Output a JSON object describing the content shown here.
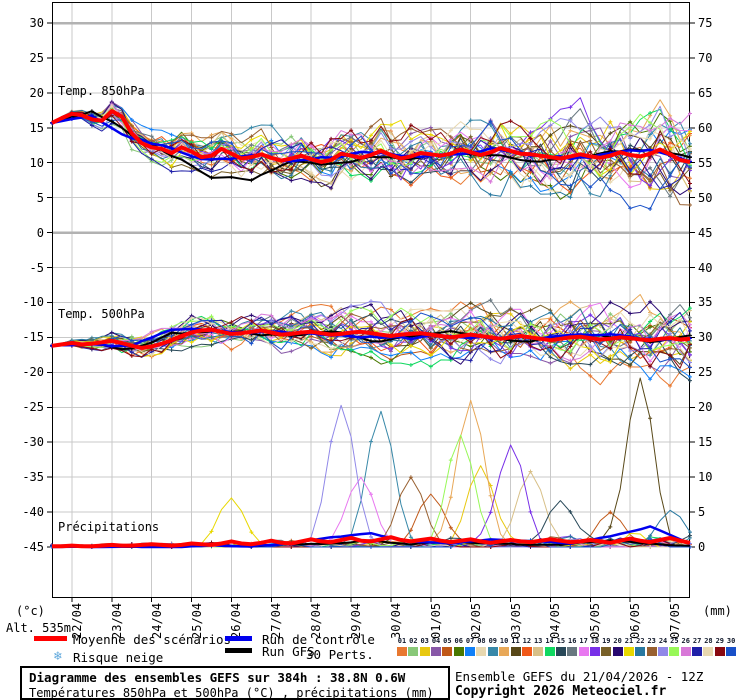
{
  "labels": {
    "altitude": "Alt. 535m",
    "unit_left": "(°c)",
    "unit_right": "(mm)",
    "risque_neige": "Risque neige",
    "snowflake": "❄",
    "perts_count": "30 Perts."
  },
  "legend": {
    "mean": "Moyenne des scénarios",
    "control": "Run de contrôle",
    "gfs": "Run GFS"
  },
  "footer": {
    "title": "Diagramme des ensembles GEFS sur 384h : 38.8N 0.6W",
    "subtitle": "Températures 850hPa et 500hPa (°C) , précipitations (mm)",
    "run_info": "Ensemble GEFS du 21/04/2026 - 12Z",
    "copyright": "Copyright 2026 Meteociel.fr"
  },
  "chart_data": {
    "type": "line",
    "title": "Diagramme des ensembles GEFS sur 384h : 38.8N 0.6W",
    "subtitle": "Températures 850hPa et 500hPa (°C) , précipitations (mm)",
    "run_info": "Ensemble GEFS du 21/04/2026 - 12Z",
    "x_dates": [
      "22/04",
      "23/04",
      "24/04",
      "25/04",
      "26/04",
      "27/04",
      "28/04",
      "29/04",
      "30/04",
      "01/05",
      "02/05",
      "03/05",
      "04/05",
      "05/05",
      "06/05",
      "07/05"
    ],
    "step_hours": 6,
    "n_points": 65,
    "left_axis": {
      "unit": "(°c)",
      "ticks": [
        30,
        25,
        20,
        15,
        10,
        5,
        0,
        -5,
        -10,
        -15,
        -20,
        -25,
        -30,
        -35,
        -40,
        -45
      ],
      "range": [
        -45,
        30
      ]
    },
    "right_axis": {
      "unit": "(mm)",
      "ticks": [
        75,
        70,
        65,
        60,
        55,
        50,
        45,
        40,
        35,
        30,
        25,
        20,
        15,
        10,
        5,
        0
      ],
      "range": [
        0,
        75
      ]
    },
    "grid": true,
    "legend_position": "bottom",
    "panels": [
      {
        "label": "Temp. 850hPa"
      },
      {
        "label": "Temp. 500hPa"
      },
      {
        "label": "Précipitations"
      }
    ],
    "series_meta": {
      "mean_name": "Moyenne des scénarios",
      "control_name": "Run de contrôle",
      "gfs_name": "Run GFS",
      "n_perturbations": 30
    },
    "mean_850": [
      15.7,
      16.4,
      17.0,
      16.8,
      16.2,
      16.0,
      17.4,
      16.6,
      14.2,
      12.8,
      12.2,
      12.0,
      11.4,
      12.2,
      11.6,
      10.8,
      11.0,
      12.0,
      11.3,
      10.6,
      10.8,
      11.2,
      10.7,
      10.3,
      10.6,
      11.0,
      10.5,
      10.1,
      10.4,
      11.3,
      11.0,
      10.7,
      11.1,
      11.7,
      11.1,
      10.6,
      10.9,
      11.4,
      11.2,
      11.0,
      11.3,
      11.9,
      11.5,
      11.1,
      11.5,
      12.1,
      11.7,
      11.3,
      11.2,
      11.0,
      10.8,
      10.6,
      10.9,
      11.2,
      10.9,
      10.7,
      11.0,
      11.5,
      11.1,
      10.9,
      11.3,
      11.9,
      11.2,
      10.4,
      10.1
    ],
    "mean_500": [
      -16.2,
      -16.0,
      -15.8,
      -16.0,
      -15.9,
      -15.7,
      -15.5,
      -15.8,
      -16.2,
      -16.5,
      -16.3,
      -15.9,
      -15.4,
      -14.8,
      -14.3,
      -14.0,
      -13.9,
      -14.2,
      -14.5,
      -14.4,
      -14.2,
      -14.0,
      -14.3,
      -14.6,
      -14.5,
      -14.3,
      -14.2,
      -14.4,
      -14.6,
      -14.5,
      -14.3,
      -14.2,
      -14.4,
      -14.6,
      -14.8,
      -14.6,
      -14.5,
      -14.4,
      -14.6,
      -14.8,
      -15.0,
      -14.8,
      -14.6,
      -14.8,
      -15.0,
      -15.2,
      -15.0,
      -14.8,
      -15.0,
      -15.2,
      -15.4,
      -15.2,
      -15.0,
      -14.9,
      -15.1,
      -15.3,
      -15.2,
      -15.0,
      -15.1,
      -15.3,
      -15.4,
      -15.2,
      -15.1,
      -15.3,
      -15.2
    ],
    "mean_precip": [
      0.1,
      0.1,
      0.2,
      0.1,
      0.1,
      0.2,
      0.3,
      0.2,
      0.2,
      0.3,
      0.4,
      0.3,
      0.2,
      0.3,
      0.5,
      0.4,
      0.3,
      0.5,
      0.8,
      0.5,
      0.4,
      0.6,
      0.9,
      0.6,
      0.5,
      0.8,
      1.1,
      0.8,
      0.7,
      1.0,
      1.3,
      0.9,
      0.8,
      1.1,
      1.4,
      1.0,
      0.8,
      1.0,
      1.2,
      0.9,
      0.7,
      0.9,
      1.1,
      0.8,
      0.6,
      0.8,
      1.0,
      0.8,
      0.7,
      0.9,
      1.1,
      0.9,
      0.7,
      0.8,
      1.0,
      0.8,
      0.6,
      0.9,
      1.2,
      0.9,
      0.7,
      1.0,
      1.3,
      0.9,
      0.6
    ],
    "control_850_daily": [
      15.7,
      17.0,
      13.5,
      11.8,
      10.5,
      11.0,
      10.2,
      10.8,
      11.5,
      10.8,
      11.2,
      12.0,
      11.0,
      10.5,
      11.2,
      11.8,
      10.2
    ],
    "control_500_daily": [
      -16.2,
      -15.9,
      -16.2,
      -14.2,
      -14.2,
      -14.3,
      -14.5,
      -14.5,
      -14.8,
      -15.2,
      -14.8,
      -15.0,
      -15.2,
      -15.0,
      -14.8,
      -15.2,
      -15.3
    ],
    "control_precip_daily": [
      0,
      0,
      0.1,
      0,
      0.3,
      0.2,
      0.5,
      1.5,
      2.0,
      0.8,
      0.5,
      1.0,
      0.8,
      0.5,
      1.5,
      3.0,
      0.5
    ],
    "gfs_850_daily": [
      15.7,
      17.2,
      14.0,
      11.0,
      8.0,
      7.6,
      10.5,
      10.0,
      11.0,
      10.5,
      11.5,
      11.0,
      10.5,
      11.0,
      11.5,
      12.0,
      10.5
    ],
    "gfs_500_daily": [
      -16.2,
      -15.8,
      -16.5,
      -14.5,
      -14.0,
      -14.5,
      -14.8,
      -14.3,
      -15.5,
      -15.0,
      -14.5,
      -15.2,
      -15.5,
      -14.8,
      -15.0,
      -15.5,
      -15.0
    ],
    "gfs_precip_daily": [
      0,
      0,
      0,
      0,
      0.2,
      0,
      0.3,
      0.5,
      1.0,
      0.5,
      0.8,
      0.5,
      0.3,
      0.5,
      1.0,
      0.5,
      0.2
    ],
    "spread_850_end": 3.0,
    "spread_500_end": 2.4,
    "pert_labels": [
      "01",
      "02",
      "03",
      "04",
      "05",
      "06",
      "07",
      "08",
      "09",
      "10",
      "11",
      "12",
      "13",
      "14",
      "15",
      "16",
      "17",
      "18",
      "19",
      "20",
      "21",
      "22",
      "23",
      "24",
      "25",
      "26",
      "27",
      "28",
      "29",
      "30"
    ],
    "pert_colors": [
      "#e87830",
      "#88c878",
      "#e8c810",
      "#8858a8",
      "#c05818",
      "#4a7800",
      "#1080f8",
      "#e8d8b0",
      "#3888a8",
      "#e8a858",
      "#584818",
      "#f05818",
      "#d8c088",
      "#10d860",
      "#284858",
      "#687880",
      "#e878f0",
      "#7830e8",
      "#786028",
      "#280870",
      "#e8d800",
      "#2878a0",
      "#986030",
      "#9088e8",
      "#98f858",
      "#d878d8",
      "#2020a8",
      "#e8d8b0",
      "#880810",
      "#1850c8"
    ],
    "precip_spikes": [
      {
        "member": 21,
        "t": 18,
        "peak": 8
      },
      {
        "member": 24,
        "t": 29,
        "peak": 24
      },
      {
        "member": 17,
        "t": 31,
        "peak": 12
      },
      {
        "member": 9,
        "t": 33,
        "peak": 23
      },
      {
        "member": 23,
        "t": 36,
        "peak": 12
      },
      {
        "member": 5,
        "t": 38,
        "peak": 9
      },
      {
        "member": 25,
        "t": 41,
        "peak": 19
      },
      {
        "member": 10,
        "t": 42,
        "peak": 25
      },
      {
        "member": 3,
        "t": 43,
        "peak": 14
      },
      {
        "member": 18,
        "t": 46,
        "peak": 17
      },
      {
        "member": 13,
        "t": 48,
        "peak": 13
      },
      {
        "member": 15,
        "t": 51,
        "peak": 8
      },
      {
        "member": 5,
        "t": 56,
        "peak": 6
      },
      {
        "member": 11,
        "t": 59,
        "peak": 29
      },
      {
        "member": 22,
        "t": 62,
        "peak": 6
      }
    ],
    "outliers": [
      {
        "panel": "850",
        "member": 29,
        "offset": 3.5,
        "t0": 16,
        "t1": 52
      },
      {
        "panel": "500",
        "member": 1,
        "offset": -5.5,
        "t0": 44,
        "t1": 64
      }
    ],
    "colors": {
      "mean": "#ff0000",
      "control": "#0000ee",
      "gfs": "#000000",
      "grid": "#c9c9c9",
      "grid_major": "#b2b2b2",
      "axis": "#000000"
    }
  }
}
